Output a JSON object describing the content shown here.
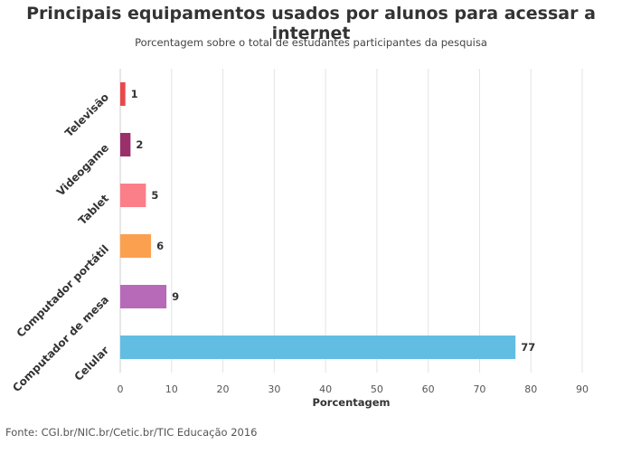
{
  "header": {
    "title": "Principais equipamentos usados por alunos para acessar a internet",
    "subtitle": "Porcentagem sobre o total de estudantes participantes da pesquisa"
  },
  "footer": {
    "source": "Fonte: CGI.br/NIC.br/Cetic.br/TIC Educação 2016"
  },
  "chart_data": {
    "type": "bar",
    "orientation": "horizontal",
    "title": "Principais equipamentos usados por alunos para acessar a internet",
    "subtitle": "Porcentagem sobre o total de estudantes participantes da pesquisa",
    "xlabel": "Porcentagem",
    "ylabel": "",
    "xlim": [
      0,
      90
    ],
    "xticks": [
      0,
      10,
      20,
      30,
      40,
      50,
      60,
      70,
      80,
      90
    ],
    "grid": true,
    "legend": "none",
    "categories": [
      "Televisão",
      "Videogame",
      "Tablet",
      "Computador portátil",
      "Computador de mesa",
      "Celular"
    ],
    "values": [
      1,
      2,
      5,
      6,
      9,
      77
    ],
    "colors": [
      "#e84a4a",
      "#9b2f6a",
      "#fb7f88",
      "#fba04f",
      "#b76ab8",
      "#62bde3"
    ]
  }
}
